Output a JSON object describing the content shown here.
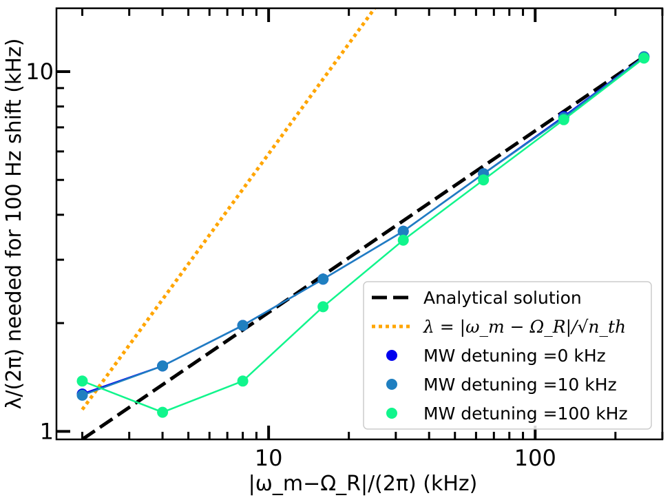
{
  "chart_data": {
    "type": "line",
    "x_scale": "log",
    "y_scale": "log",
    "xlim": [
      1.6,
      300
    ],
    "ylim": [
      0.95,
      15
    ],
    "xlabel": "|ω_m−Ω_R|/(2π) (kHz)",
    "ylabel": "λ/(2π) needed for 100 Hz shift (kHz)",
    "x_ticks": [
      {
        "value": 10,
        "label": "10"
      },
      {
        "value": 100,
        "label": "100"
      }
    ],
    "y_ticks": [
      {
        "value": 1,
        "label": "1"
      },
      {
        "value": 10,
        "label": "10"
      }
    ],
    "legend_position": "lower-right",
    "legend": [
      {
        "label": "Analytical solution",
        "style": "dashed-line",
        "color": "#000000"
      },
      {
        "label": "λ = |ω_m − Ω_R|/√n_th",
        "style": "dotted-line",
        "color": "#FFA500"
      },
      {
        "label": "MW detuning =0 kHz",
        "style": "marker",
        "color": "#0000EE"
      },
      {
        "label": "MW detuning =10 kHz",
        "style": "marker",
        "color": "#1F7FC0"
      },
      {
        "label": "MW detuning =100 kHz",
        "style": "marker",
        "color": "#11F58C"
      }
    ],
    "series": [
      {
        "name": "Analytical solution",
        "kind": "dashed",
        "color": "#000000",
        "x": [
          2,
          256
        ],
        "y": [
          0.95,
          11.0
        ]
      },
      {
        "name": "λ = |ω_m − Ω_R|/√n_th",
        "kind": "dotted",
        "color": "#FFA500",
        "x": [
          2,
          25
        ],
        "y": [
          1.15,
          15
        ]
      },
      {
        "name": "MW detuning =0 kHz",
        "kind": "marker-line",
        "color": "#0000EE",
        "x": [
          2,
          4,
          8,
          16,
          32,
          64,
          128,
          256
        ],
        "y": [
          1.27,
          1.52,
          1.97,
          2.65,
          3.6,
          5.2,
          7.5,
          11.0
        ]
      },
      {
        "name": "MW detuning =10 kHz",
        "kind": "marker-line",
        "color": "#1F7FC0",
        "x": [
          2,
          4,
          8,
          16,
          32,
          64,
          128,
          256
        ],
        "y": [
          1.26,
          1.52,
          1.97,
          2.65,
          3.6,
          5.2,
          7.45,
          11.0
        ]
      },
      {
        "name": "MW detuning =100 kHz",
        "kind": "marker-line",
        "color": "#11F58C",
        "x": [
          2,
          4,
          8,
          16,
          32,
          64,
          128,
          256
        ],
        "y": [
          1.38,
          1.13,
          1.38,
          2.22,
          3.4,
          5.0,
          7.35,
          10.9
        ]
      }
    ]
  }
}
